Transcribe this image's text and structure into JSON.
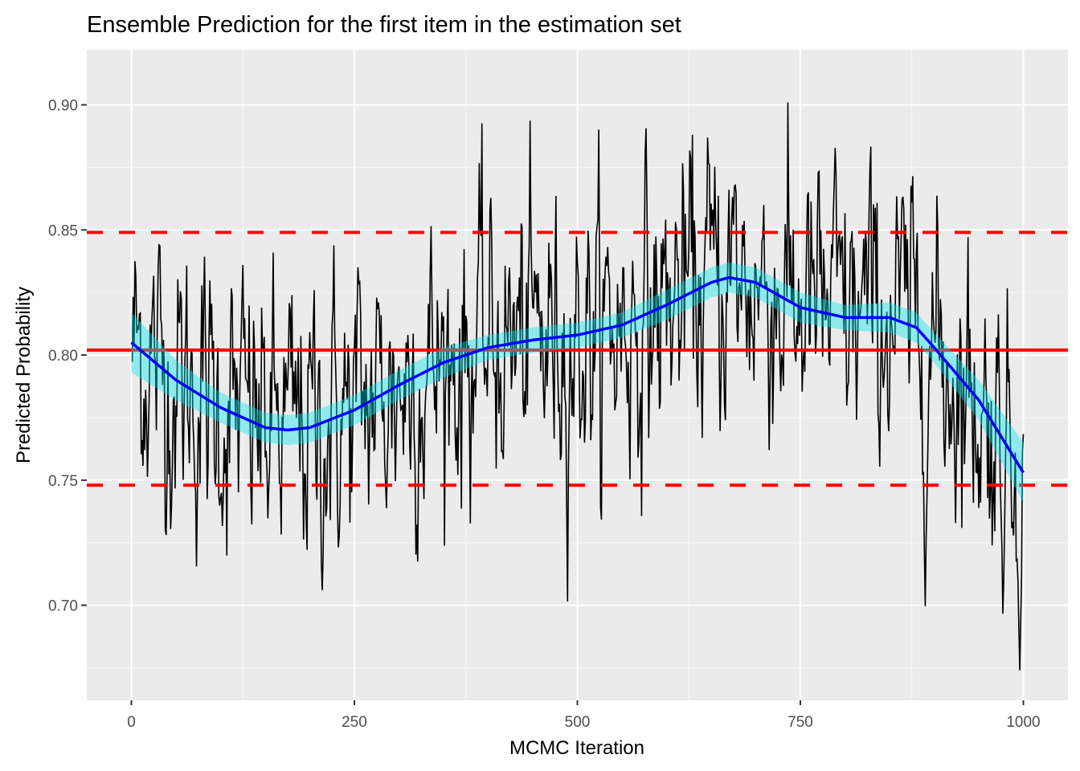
{
  "chart_data": {
    "type": "line",
    "title": "Ensemble Prediction for the first item in the estimation set",
    "xlabel": "MCMC Iteration",
    "ylabel": "Predicted Probability",
    "xlim": [
      -50,
      1050
    ],
    "ylim": [
      0.662,
      0.922
    ],
    "x_ticks": [
      0,
      250,
      500,
      750,
      1000
    ],
    "x_tick_labels": [
      "0",
      "250",
      "500",
      "750",
      "1000"
    ],
    "y_ticks": [
      0.7,
      0.75,
      0.8,
      0.85,
      0.9
    ],
    "y_tick_labels": [
      "0.70",
      "0.75",
      "0.80",
      "0.85",
      "0.90"
    ],
    "grid": true,
    "trace": {
      "name": "MCMC draws",
      "color": "#000000",
      "n_iterations": 1000,
      "min": 0.674,
      "max": 0.906,
      "approx_range_note": "noisy trace centered near 0.80"
    },
    "smooth": {
      "name": "loess fit",
      "color": "#0000ff",
      "ribbon_color": "#00e5ee",
      "x": [
        0,
        50,
        100,
        150,
        175,
        200,
        250,
        300,
        350,
        400,
        450,
        500,
        550,
        600,
        650,
        670,
        700,
        750,
        800,
        850,
        880,
        900,
        950,
        1000
      ],
      "y": [
        0.805,
        0.79,
        0.779,
        0.771,
        0.77,
        0.771,
        0.778,
        0.788,
        0.797,
        0.803,
        0.806,
        0.808,
        0.812,
        0.82,
        0.829,
        0.831,
        0.829,
        0.819,
        0.815,
        0.815,
        0.811,
        0.803,
        0.782,
        0.753
      ],
      "se": [
        0.012,
        0.008,
        0.006,
        0.006,
        0.006,
        0.006,
        0.006,
        0.006,
        0.006,
        0.005,
        0.005,
        0.005,
        0.005,
        0.006,
        0.006,
        0.006,
        0.006,
        0.006,
        0.005,
        0.006,
        0.006,
        0.006,
        0.008,
        0.012
      ]
    },
    "hlines": [
      {
        "name": "mean",
        "y": 0.802,
        "color": "#ff0000",
        "style": "solid"
      },
      {
        "name": "upper-bound",
        "y": 0.849,
        "color": "#ff0000",
        "style": "dashed"
      },
      {
        "name": "lower-bound",
        "y": 0.748,
        "color": "#ff0000",
        "style": "dashed"
      }
    ],
    "colors": {
      "panel_background": "#ebebeb",
      "grid_major": "#ffffff",
      "grid_minor": "#f5f5f5"
    }
  }
}
